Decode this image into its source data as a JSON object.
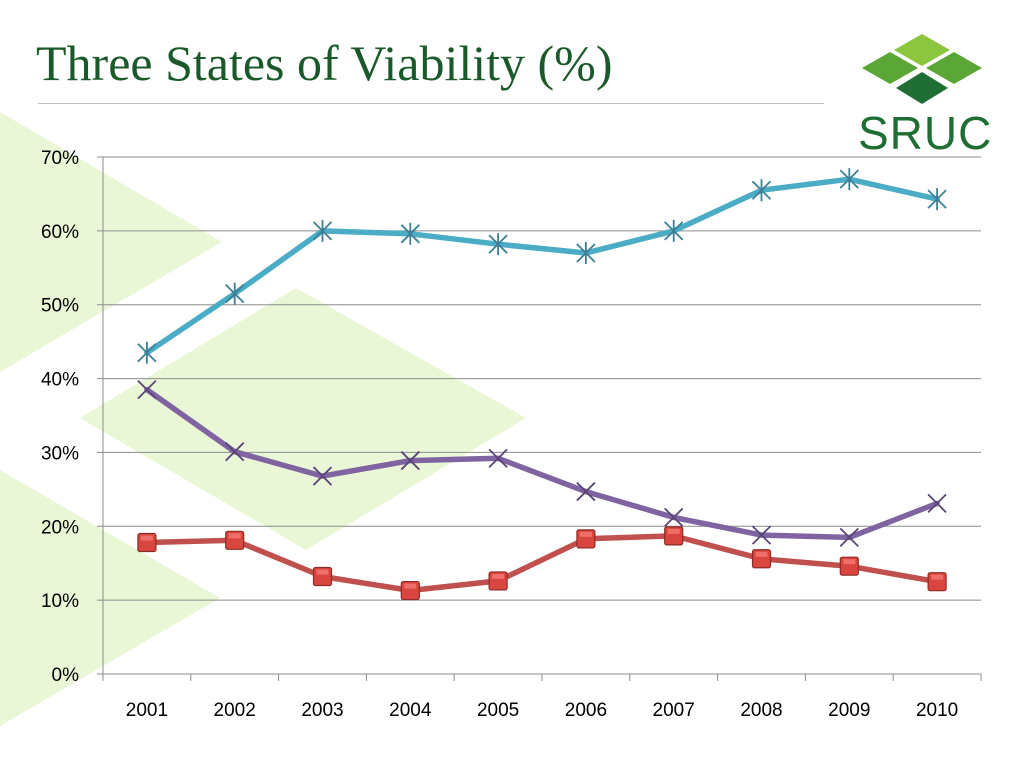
{
  "slide": {
    "title": "Three States of Viability (%)",
    "logo_text": "SRUC"
  },
  "colors": {
    "title": "#1a5a2a",
    "logo_dark": "#1f6e34",
    "logo_mid": "#5aa637",
    "logo_light": "#8cc63f",
    "decor": "#e9f7d6",
    "series_1": "#4bacc6",
    "series_2": "#8064a2",
    "series_3": "#c0504d"
  },
  "chart_data": {
    "type": "line",
    "title": "",
    "xlabel": "",
    "ylabel": "",
    "categories": [
      "2001",
      "2002",
      "2003",
      "2004",
      "2005",
      "2006",
      "2007",
      "2008",
      "2009",
      "2010"
    ],
    "ylim": [
      0,
      70
    ],
    "yticks": [
      0,
      10,
      20,
      30,
      40,
      50,
      60,
      70
    ],
    "ytick_labels": [
      "0%",
      "10%",
      "20%",
      "30%",
      "40%",
      "50%",
      "60%",
      "70%"
    ],
    "grid": true,
    "legend": "none",
    "series": [
      {
        "values": [
          43.5,
          51.5,
          60.0,
          59.6,
          58.2,
          57.0,
          60.0,
          65.5,
          67.0,
          64.3
        ],
        "color": "#4bacc6",
        "marker": "star"
      },
      {
        "values": [
          38.5,
          30.1,
          26.8,
          28.9,
          29.2,
          24.7,
          21.2,
          18.8,
          18.5,
          23.1
        ],
        "color": "#8064a2",
        "marker": "x"
      },
      {
        "values": [
          17.8,
          18.1,
          13.2,
          11.3,
          12.6,
          18.3,
          18.7,
          15.6,
          14.6,
          12.5
        ],
        "color": "#c0504d",
        "marker": "square"
      }
    ]
  }
}
